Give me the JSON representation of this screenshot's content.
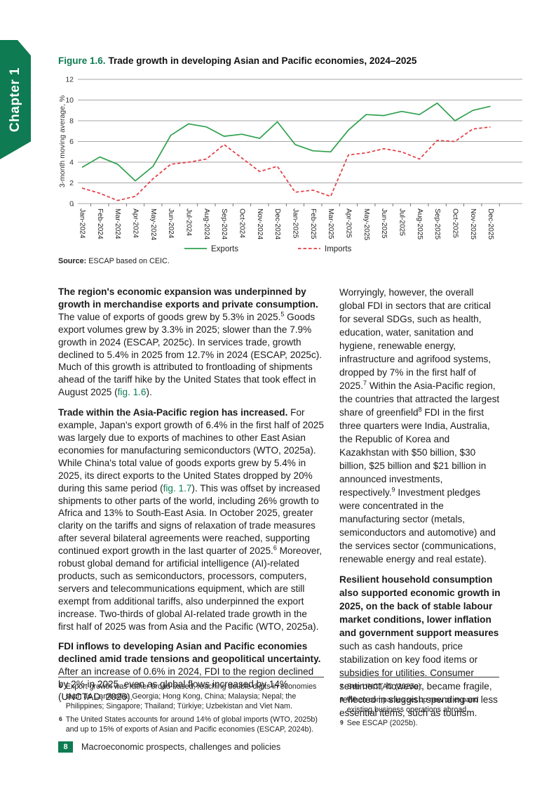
{
  "page": {
    "chapter_tab": "Chapter 1",
    "footer": {
      "page_number": "8",
      "text": "Macroeconomic prospects, challenges and policies"
    }
  },
  "figure": {
    "label": "Figure 1.6.",
    "title": "Trade growth in developing Asian and Pacific economies, 2024–2025",
    "source_label": "Source:",
    "source_text": "ESCAP based on CEIC."
  },
  "chart_data": {
    "type": "line",
    "title": "Trade growth in developing Asian and Pacific economies, 2024–2025",
    "xlabel": "",
    "ylabel": "3-month moving average, %",
    "ylim": [
      0,
      12
    ],
    "ytick_step": 2,
    "grid": true,
    "legend_position": "bottom",
    "categories": [
      "Jan-2024",
      "Feb-2024",
      "Mar-2024",
      "Apr-2024",
      "May-2024",
      "Jun-2024",
      "Jul-2024",
      "Aug-2024",
      "Sep-2024",
      "Oct-2024",
      "Nov-2024",
      "Dec-2024",
      "Jan-2025",
      "Feb-2025",
      "Mar-2025",
      "Apr-2025",
      "May-2025",
      "Jun-2025",
      "Jul-2025",
      "Aug-2025",
      "Sep-2025",
      "Oct-2025",
      "Nov-2025",
      "Dec-2025"
    ],
    "series": [
      {
        "name": "Exports",
        "color": "#2FA04E",
        "style": "solid",
        "values": [
          3.5,
          4.5,
          3.8,
          2.2,
          3.6,
          6.6,
          7.7,
          7.4,
          6.5,
          6.7,
          6.3,
          7.9,
          5.7,
          5.1,
          5.0,
          7.1,
          8.6,
          8.5,
          8.9,
          8.6,
          9.7,
          8.0,
          9.0,
          9.4
        ]
      },
      {
        "name": "Imports",
        "color": "#E23B41",
        "style": "dashed",
        "values": [
          1.5,
          1.0,
          0.3,
          0.7,
          2.4,
          3.8,
          4.0,
          4.3,
          5.7,
          4.4,
          3.1,
          3.6,
          1.1,
          1.3,
          0.7,
          4.7,
          4.9,
          5.3,
          5.0,
          4.3,
          6.1,
          6.0,
          7.2,
          7.4
        ]
      }
    ]
  },
  "content": {
    "left_column": {
      "paragraphs": [
        [
          {
            "s": "bold",
            "t": "The region's economic expansion was underpinned by growth in merchandise exports and private consumption."
          },
          {
            "s": "normal",
            "t": " The value of exports of goods grew by 5.3% in 2025."
          },
          {
            "s": "sup",
            "t": "5"
          },
          {
            "s": "normal",
            "t": " Goods export volumes grew by 3.3% in 2025; slower than the 7.9% growth in 2024 (ESCAP, 2025c). In services trade, growth declined to 5.4% in 2025 from 12.7% in 2024 (ESCAP, 2025c). Much of this growth is attributed to frontloading of shipments ahead of the tariff hike by the United States that took effect in August 2025 ("
          },
          {
            "s": "ref",
            "t": "fig. 1.6"
          },
          {
            "s": "normal",
            "t": ")."
          }
        ],
        [
          {
            "s": "bold",
            "t": "Trade within the Asia-Pacific region has increased."
          },
          {
            "s": "normal",
            "t": " For example, Japan's export growth of 6.4% in the first half of 2025 was largely due to exports of machines to other East Asian economies for manufacturing semiconductors (WTO, 2025a). While China's total value of goods exports grew by 5.4% in 2025, its direct exports to the United States dropped by 20% during this same period ("
          },
          {
            "s": "ref",
            "t": "fig. 1.7"
          },
          {
            "s": "normal",
            "t": "). This was offset by increased shipments to other parts of the world, including 26% growth to Africa and 13% to South-East Asia. In October 2025, greater clarity on the tariffs and signs of relaxation of trade measures after several bilateral agreements were reached, supporting continued export growth in the last quarter of 2025."
          },
          {
            "s": "sup",
            "t": "6"
          },
          {
            "s": "normal",
            "t": " Moreover, robust global demand for artificial intelligence (AI)-related products, such as semiconductors, processors, computers, servers and telecommunications equipment, which are still exempt from additional tariffs, also underpinned the export increase. Two-thirds of global AI-related trade growth in the first half of 2025 was from Asia and the Pacific (WTO, 2025a)."
          }
        ],
        [
          {
            "s": "bold",
            "t": "FDI inflows to developing Asian and Pacific economies declined amid trade tensions and geopolitical uncertainty."
          },
          {
            "s": "normal",
            "t": " After an increase of 0.6% in 2024, FDI to the region declined by 2% in 2025, even as global flows increased by 14% (UNCTAD, 2026)."
          }
        ]
      ]
    },
    "right_column": {
      "paragraphs": [
        [
          {
            "s": "normal",
            "t": "Worryingly, however, the overall global FDI in sectors that are critical for several SDGs, such as health, education, water, sanitation and hygiene, renewable energy, infrastructure and agrifood systems, dropped by 7% in the first half of 2025."
          },
          {
            "s": "sup",
            "t": "7"
          },
          {
            "s": "normal",
            "t": " Within the Asia-Pacific region, the countries that attracted the largest share of greenfield"
          },
          {
            "s": "sup",
            "t": "8"
          },
          {
            "s": "normal",
            "t": " FDI in the first three quarters were India, Australia, the Republic of Korea and Kazakhstan with $50 billion, $30 billion, $25 billion and $21 billion in announced investments, respectively."
          },
          {
            "s": "sup",
            "t": "9"
          },
          {
            "s": "normal",
            "t": " Investment pledges were concentrated in the manufacturing sector (metals, semiconductors and automotive) and the services sector (communications, renewable energy and real estate)."
          }
        ],
        [
          {
            "s": "bold",
            "t": "Resilient household consumption also supported economic growth in 2025, on the back of stable labour market conditions, lower inflation and government support measures"
          },
          {
            "s": "normal",
            "t": " such as cash handouts, price stabilization on key food items or subsidies for utilities. Consumer sentiment, however, became fragile, reflected in sluggish spending on less essential items, such as tourism."
          }
        ]
      ]
    }
  },
  "footnotes": {
    "left": [
      {
        "num": "5",
        "text": "Export growth was rather broad-based, reaching double digits in economies such as Cambodia; Georgia; Hong Kong, China; Malaysia; Nepal; the Philippines; Singapore; Thailand; Türkiye; Uzbekistan and Viet Nam."
      },
      {
        "num": "6",
        "text": "The United States accounts for around 14% of global imports (WTO, 2025b) and up to 15% of exports of Asian and Pacific economies (ESCAP, 2024b)."
      }
    ],
    "right": [
      {
        "num": "7",
        "text": "See UNCTAD (2025a)."
      },
      {
        "num": "8",
        "text": "When companies set up new or expand existing business operations abroad."
      },
      {
        "num": "9",
        "text": "See ESCAP (2025b)."
      }
    ]
  },
  "colors": {
    "accent_green": "#0E7B52",
    "export_line": "#2FA04E",
    "import_line": "#E23B41",
    "grid": "#A6A6A6"
  }
}
